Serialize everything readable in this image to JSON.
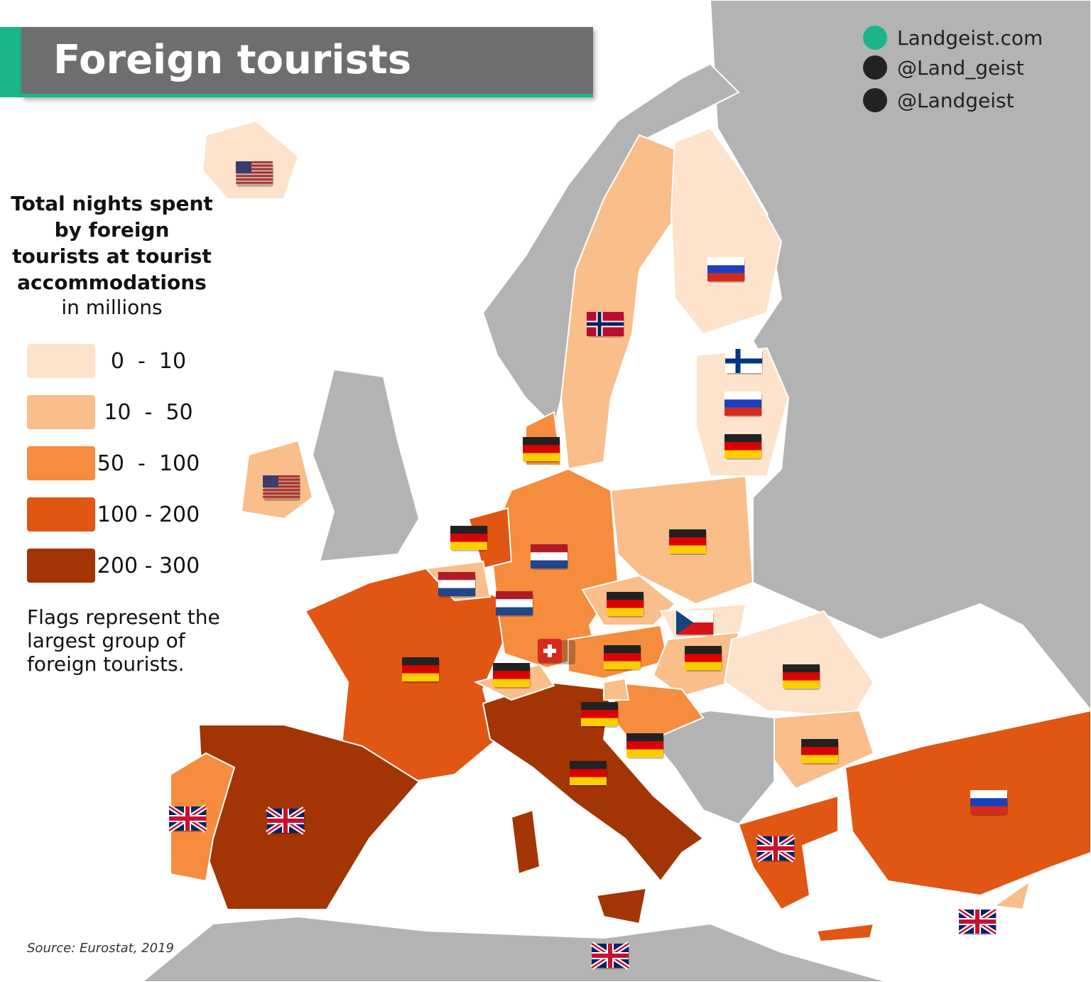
{
  "header": {
    "title": "Foreign tourists"
  },
  "branding": {
    "website": "Landgeist.com",
    "instagram": "@Land_geist",
    "twitter": "@Landgeist"
  },
  "legend": {
    "title": "Total nights spent by foreign tourists at tourist accommodations",
    "subtitle": "in millions",
    "items": [
      {
        "label": "0  -  10",
        "color": "#fde3cc"
      },
      {
        "label": "10  -  50",
        "color": "#f9be8a"
      },
      {
        "label": "50  -  100",
        "color": "#f68c3d"
      },
      {
        "label": "100 - 200",
        "color": "#e05612"
      },
      {
        "label": "200 - 300",
        "color": "#a33404"
      }
    ]
  },
  "note": "Flags represent the largest group of foreign tourists.",
  "source": "Source: Eurostat, 2019"
}
